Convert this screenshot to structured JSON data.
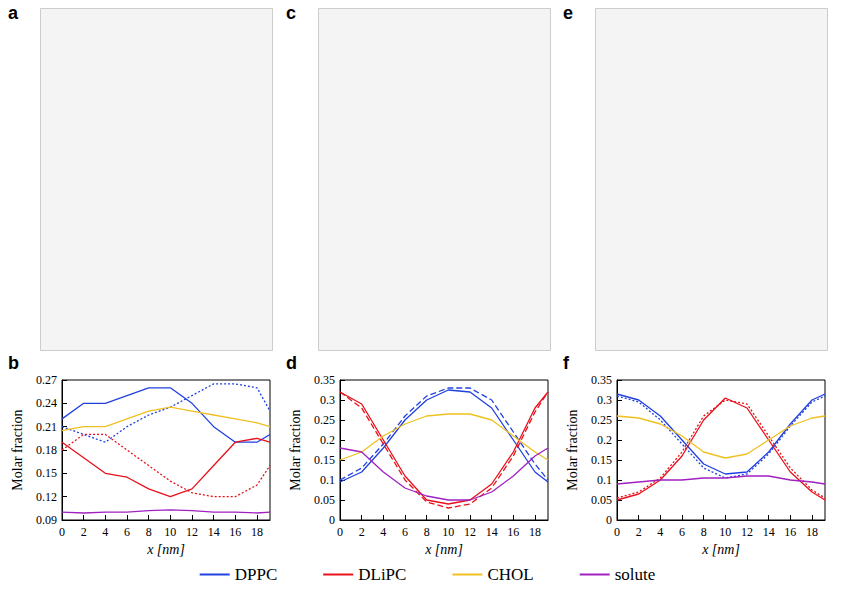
{
  "snapshot_panels": [
    "a",
    "c",
    "e"
  ],
  "chart_data": [
    {
      "type": "line",
      "panel": "b",
      "x_label": "x [nm]",
      "y_label": "Molar fraction",
      "legend": "bottom",
      "x": [
        0,
        2,
        4,
        6,
        8,
        10,
        12,
        14,
        16,
        18,
        19.2
      ],
      "xlim": [
        0,
        19.2
      ],
      "xticks": [
        0,
        2,
        4,
        6,
        8,
        10,
        12,
        14,
        16,
        18
      ],
      "ylim": [
        0.09,
        0.27
      ],
      "yticks": [
        0.09,
        0.12,
        0.15,
        0.18,
        0.21,
        0.24,
        0.27
      ],
      "series": [
        {
          "name": "DPPC",
          "color": "#2040e0",
          "line_style": "solid",
          "values": [
            0.22,
            0.24,
            0.24,
            0.25,
            0.26,
            0.26,
            0.24,
            0.21,
            0.19,
            0.19,
            0.2
          ]
        },
        {
          "name": "DPPC",
          "color": "#2040e0",
          "line_style": "dotted",
          "values": [
            0.21,
            0.2,
            0.19,
            0.21,
            0.225,
            0.235,
            0.25,
            0.265,
            0.265,
            0.26,
            0.23
          ]
        },
        {
          "name": "DLiPC",
          "color": "#e8101a",
          "line_style": "solid",
          "values": [
            0.19,
            0.17,
            0.15,
            0.145,
            0.13,
            0.12,
            0.13,
            0.16,
            0.19,
            0.195,
            0.19
          ]
        },
        {
          "name": "DLiPC",
          "color": "#e8101a",
          "line_style": "dotted",
          "values": [
            0.18,
            0.2,
            0.2,
            0.18,
            0.16,
            0.14,
            0.125,
            0.12,
            0.12,
            0.135,
            0.16
          ]
        },
        {
          "name": "CHOL",
          "color": "#f0c020",
          "line_style": "solid",
          "values": [
            0.205,
            0.21,
            0.21,
            0.22,
            0.23,
            0.235,
            0.23,
            0.225,
            0.22,
            0.215,
            0.21
          ]
        },
        {
          "name": "solute",
          "color": "#a020c0",
          "line_style": "solid",
          "values": [
            0.1,
            0.099,
            0.1,
            0.1,
            0.102,
            0.103,
            0.102,
            0.1,
            0.1,
            0.099,
            0.1
          ]
        }
      ]
    },
    {
      "type": "line",
      "panel": "d",
      "x_label": "x [nm]",
      "y_label": "Molar fraction",
      "legend": "bottom",
      "x": [
        0,
        2,
        4,
        6,
        8,
        10,
        12,
        14,
        16,
        18,
        19.2
      ],
      "xlim": [
        0,
        19.2
      ],
      "xticks": [
        0,
        2,
        4,
        6,
        8,
        10,
        12,
        14,
        16,
        18
      ],
      "ylim": [
        0,
        0.35
      ],
      "yticks": [
        0,
        0.05,
        0.1,
        0.15,
        0.2,
        0.25,
        0.3,
        0.35
      ],
      "series": [
        {
          "name": "DPPC",
          "color": "#2040e0",
          "line_style": "solid",
          "values": [
            0.095,
            0.12,
            0.18,
            0.25,
            0.3,
            0.325,
            0.32,
            0.28,
            0.2,
            0.12,
            0.095
          ]
        },
        {
          "name": "DPPC",
          "color": "#2040e0",
          "line_style": "dashed",
          "values": [
            0.1,
            0.13,
            0.19,
            0.26,
            0.31,
            0.33,
            0.33,
            0.3,
            0.22,
            0.14,
            0.1
          ]
        },
        {
          "name": "DLiPC",
          "color": "#e8101a",
          "line_style": "solid",
          "values": [
            0.32,
            0.29,
            0.2,
            0.11,
            0.05,
            0.04,
            0.05,
            0.09,
            0.17,
            0.28,
            0.32
          ]
        },
        {
          "name": "DLiPC",
          "color": "#e8101a",
          "line_style": "dashed",
          "values": [
            0.32,
            0.28,
            0.19,
            0.1,
            0.045,
            0.03,
            0.04,
            0.08,
            0.16,
            0.27,
            0.32
          ]
        },
        {
          "name": "CHOL",
          "color": "#f0c020",
          "line_style": "solid",
          "values": [
            0.15,
            0.17,
            0.21,
            0.24,
            0.26,
            0.265,
            0.265,
            0.25,
            0.21,
            0.17,
            0.15
          ]
        },
        {
          "name": "solute",
          "color": "#a020c0",
          "line_style": "solid",
          "values": [
            0.18,
            0.17,
            0.12,
            0.08,
            0.06,
            0.05,
            0.05,
            0.07,
            0.11,
            0.16,
            0.18
          ]
        }
      ]
    },
    {
      "type": "line",
      "panel": "f",
      "x_label": "x [nm]",
      "y_label": "Molar fraction",
      "legend": "bottom",
      "x": [
        0,
        2,
        4,
        6,
        8,
        10,
        12,
        14,
        16,
        18,
        19.2
      ],
      "xlim": [
        0,
        19.2
      ],
      "xticks": [
        0,
        2,
        4,
        6,
        8,
        10,
        12,
        14,
        16,
        18
      ],
      "ylim": [
        0,
        0.35
      ],
      "yticks": [
        0,
        0.05,
        0.1,
        0.15,
        0.2,
        0.25,
        0.3,
        0.35
      ],
      "series": [
        {
          "name": "DPPC",
          "color": "#2040e0",
          "line_style": "solid",
          "values": [
            0.315,
            0.3,
            0.26,
            0.2,
            0.14,
            0.115,
            0.12,
            0.17,
            0.24,
            0.3,
            0.315
          ]
        },
        {
          "name": "DPPC",
          "color": "#2040e0",
          "line_style": "dotted",
          "values": [
            0.31,
            0.295,
            0.25,
            0.19,
            0.13,
            0.105,
            0.115,
            0.165,
            0.235,
            0.295,
            0.31
          ]
        },
        {
          "name": "DLiPC",
          "color": "#e8101a",
          "line_style": "solid",
          "values": [
            0.05,
            0.065,
            0.1,
            0.16,
            0.25,
            0.305,
            0.28,
            0.2,
            0.12,
            0.07,
            0.05
          ]
        },
        {
          "name": "DLiPC",
          "color": "#e8101a",
          "line_style": "dotted",
          "values": [
            0.055,
            0.07,
            0.105,
            0.17,
            0.26,
            0.3,
            0.29,
            0.21,
            0.13,
            0.075,
            0.055
          ]
        },
        {
          "name": "CHOL",
          "color": "#f0c020",
          "line_style": "solid",
          "values": [
            0.26,
            0.255,
            0.24,
            0.21,
            0.17,
            0.155,
            0.165,
            0.2,
            0.235,
            0.255,
            0.26
          ]
        },
        {
          "name": "solute",
          "color": "#a020c0",
          "line_style": "solid",
          "values": [
            0.09,
            0.095,
            0.1,
            0.1,
            0.105,
            0.105,
            0.11,
            0.11,
            0.1,
            0.095,
            0.09
          ]
        }
      ]
    }
  ]
}
